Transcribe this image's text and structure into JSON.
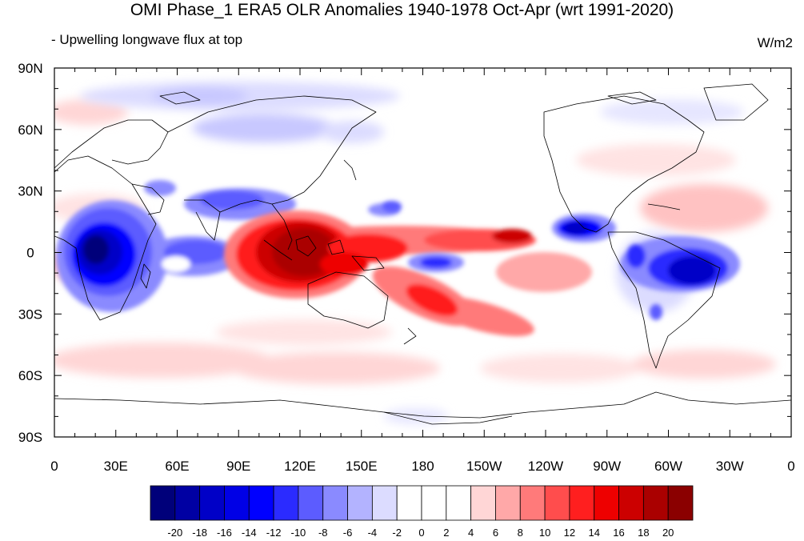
{
  "title": "OMI Phase_1 ERA5 OLR Anomalies 1940-1978 Oct-Apr (wrt 1991-2020)",
  "subtitle_left": "- Upwelling longwave flux at top",
  "units": "W/m2",
  "map": {
    "projection": "cylindrical-equidistant",
    "lon_range": [
      0,
      360
    ],
    "lat_range": [
      -90,
      90
    ],
    "lat_tick_labels": [
      "90N",
      "60N",
      "30N",
      "0",
      "30S",
      "60S",
      "90S"
    ],
    "lon_tick_labels": [
      "0",
      "30E",
      "60E",
      "90E",
      "120E",
      "150E",
      "180",
      "150W",
      "120W",
      "90W",
      "60W",
      "30W",
      "0"
    ],
    "anomaly_regions": [
      {
        "name": "maritime-continent-enhanced-olr",
        "value": 20
      },
      {
        "name": "central-pacific-band",
        "value": 12
      },
      {
        "name": "south-pacific-convergence-band",
        "value": 12
      },
      {
        "name": "central-africa-reduced-olr",
        "value": -20
      },
      {
        "name": "amazon-reduced-olr",
        "value": -18
      },
      {
        "name": "central-america-reduced-olr",
        "value": -14
      },
      {
        "name": "indian-ocean-reduced-olr",
        "value": -12
      }
    ]
  },
  "colorbar": {
    "labels": [
      "-20",
      "-18",
      "-16",
      "-14",
      "-12",
      "-10",
      "-8",
      "-6",
      "-4",
      "-2",
      "0",
      "2",
      "4",
      "6",
      "8",
      "10",
      "12",
      "14",
      "16",
      "18",
      "20"
    ],
    "colors": [
      "#00007a",
      "#0000a3",
      "#0000c7",
      "#0000e6",
      "#0000ff",
      "#2b2bff",
      "#5c5cff",
      "#8a8aff",
      "#b3b3ff",
      "#dcdcff",
      "#ffffff",
      "#ffffff",
      "#ffd6d6",
      "#ffa8a8",
      "#ff7a7a",
      "#ff4d4d",
      "#ff1f1f",
      "#ee0000",
      "#cc0000",
      "#aa0000",
      "#8b0000"
    ]
  }
}
